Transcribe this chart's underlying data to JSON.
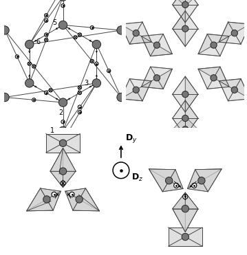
{
  "background_color": "#ffffff",
  "atom_color": "#777777",
  "atom_edge_color": "#222222",
  "poly_face_color": "#cccccc",
  "poly_edge_color": "#333333",
  "line_color": "#444444",
  "arrow_color": "#000000",
  "figsize": [
    3.59,
    3.71
  ],
  "dpi": 100
}
